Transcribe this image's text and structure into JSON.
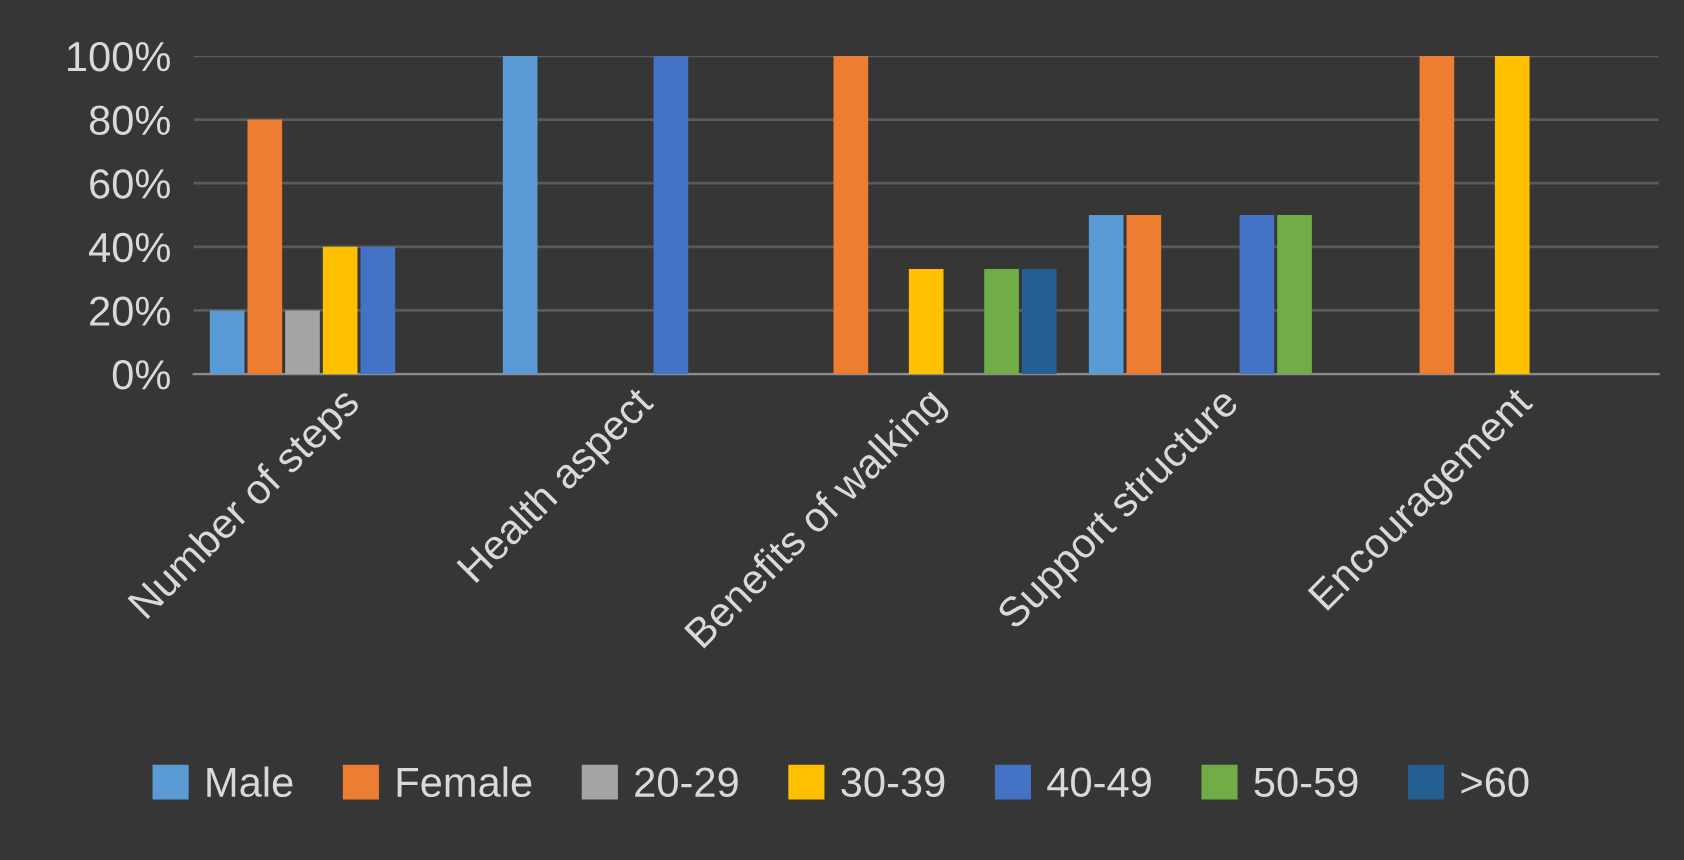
{
  "chart_data": {
    "type": "bar",
    "categories": [
      "Number of steps",
      "Health aspect",
      "Benefits of walking",
      "Support structure",
      "Encouragement"
    ],
    "series": [
      {
        "name": "Male",
        "color": "#5b9bd5",
        "values": [
          20,
          100,
          0,
          50,
          0
        ]
      },
      {
        "name": "Female",
        "color": "#ed7d31",
        "values": [
          80,
          0,
          100,
          50,
          100
        ]
      },
      {
        "name": "20-29",
        "color": "#a5a5a5",
        "values": [
          20,
          0,
          0,
          0,
          0
        ]
      },
      {
        "name": "30-39",
        "color": "#ffc000",
        "values": [
          40,
          0,
          33,
          0,
          100
        ]
      },
      {
        "name": "40-49",
        "color": "#4472c4",
        "values": [
          40,
          100,
          0,
          50,
          0
        ]
      },
      {
        "name": "50-59",
        "color": "#70ad47",
        "values": [
          0,
          0,
          33,
          50,
          0
        ]
      },
      {
        "name": ">60",
        "color": "#255e91",
        "values": [
          0,
          0,
          33,
          0,
          0
        ]
      }
    ],
    "ylim": [
      0,
      100
    ],
    "yticks": [
      {
        "value": 0,
        "label": "0%"
      },
      {
        "value": 20,
        "label": "20%"
      },
      {
        "value": 40,
        "label": "40%"
      },
      {
        "value": 60,
        "label": "60%"
      },
      {
        "value": 80,
        "label": "80%"
      },
      {
        "value": 100,
        "label": "100%"
      }
    ],
    "grid": "y",
    "legend": "bottom"
  }
}
